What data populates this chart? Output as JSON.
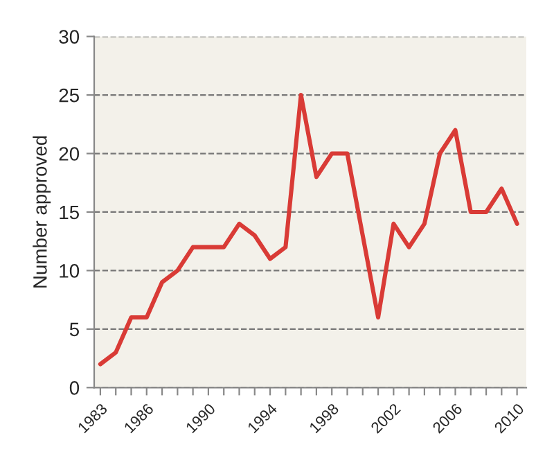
{
  "chart_data": {
    "type": "line",
    "ylabel": "Number approved",
    "x": [
      1983,
      1984,
      1985,
      1986,
      1987,
      1988,
      1989,
      1990,
      1991,
      1992,
      1993,
      1994,
      1995,
      1996,
      1997,
      1998,
      1999,
      2000,
      2001,
      2002,
      2003,
      2004,
      2005,
      2006,
      2007,
      2008,
      2009,
      2010
    ],
    "series": [
      {
        "color": "#d93b36",
        "values": [
          2,
          3,
          6,
          6,
          9,
          10,
          12,
          12,
          12,
          14,
          13,
          11,
          12,
          25,
          18,
          20,
          20,
          13,
          6,
          14,
          12,
          14,
          20,
          22,
          15,
          15,
          17,
          14
        ]
      }
    ],
    "xlim": [
      1982.6,
      2010.6
    ],
    "xticks": [
      1983,
      {
        "value": 1984,
        "label": null
      },
      {
        "value": 1985,
        "label": null
      },
      1986,
      {
        "value": 1987,
        "label": null
      },
      {
        "value": 1988,
        "label": null
      },
      {
        "value": 1989,
        "label": null
      },
      1990,
      {
        "value": 1991,
        "label": null
      },
      {
        "value": 1992,
        "label": null
      },
      {
        "value": 1993,
        "label": null
      },
      1994,
      {
        "value": 1995,
        "label": null
      },
      {
        "value": 1996,
        "label": null
      },
      {
        "value": 1997,
        "label": null
      },
      1998,
      {
        "value": 1999,
        "label": null
      },
      {
        "value": 2000,
        "label": null
      },
      {
        "value": 2001,
        "label": null
      },
      2002,
      {
        "value": 2003,
        "label": null
      },
      {
        "value": 2004,
        "label": null
      },
      {
        "value": 2005,
        "label": null
      },
      2006,
      {
        "value": 2007,
        "label": null
      },
      {
        "value": 2008,
        "label": null
      },
      {
        "value": 2009,
        "label": null
      },
      2010
    ],
    "ylim": [
      0,
      30
    ],
    "yticks": [
      0,
      5,
      10,
      15,
      20,
      25,
      30
    ],
    "grid": "y",
    "marker": "none",
    "line_style": "solid",
    "legend": false
  }
}
